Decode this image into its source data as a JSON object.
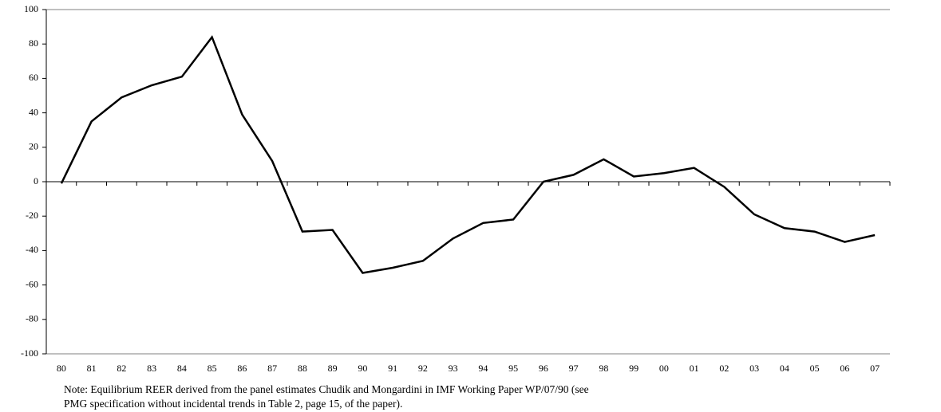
{
  "chart_data": {
    "type": "line",
    "categories": [
      "80",
      "81",
      "82",
      "83",
      "84",
      "85",
      "86",
      "87",
      "88",
      "89",
      "90",
      "91",
      "92",
      "93",
      "94",
      "95",
      "96",
      "97",
      "98",
      "99",
      "00",
      "01",
      "02",
      "03",
      "04",
      "05",
      "06",
      "07"
    ],
    "values": [
      -1,
      35,
      49,
      56,
      61,
      84,
      39,
      12,
      -29,
      -28,
      -53,
      -50,
      -46,
      -33,
      -24,
      -22,
      0,
      4,
      13,
      3,
      5,
      8,
      -3,
      -19,
      -27,
      -29,
      -35,
      -31
    ],
    "color": "#000000",
    "ylim": [
      -100,
      100
    ],
    "yticks": [
      -100,
      -80,
      -60,
      -40,
      -20,
      0,
      20,
      40,
      60,
      80,
      100
    ],
    "note": [
      "Note: Equilibrium REER derived from the panel estimates Chudik and Mongardini in IMF Working Paper  WP/07/90 (see",
      "PMG specification without incidental trends in Table 2, page 15, of the paper)."
    ]
  }
}
